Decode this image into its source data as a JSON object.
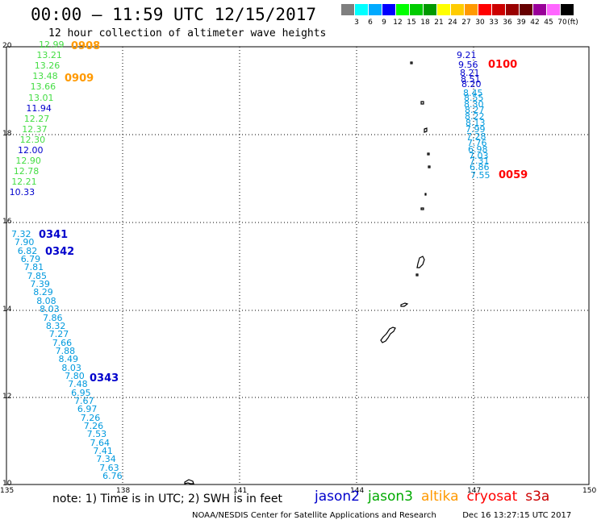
{
  "header": {
    "title": "00:00 – 11:59 UTC 12/15/2017",
    "subtitle": "12 hour collection of altimeter wave heights"
  },
  "legend": {
    "unit_label": "(ft)",
    "bins": [
      {
        "label": "3",
        "color": "#7f7f7f"
      },
      {
        "label": "6",
        "color": "#00ffff"
      },
      {
        "label": "9",
        "color": "#00aaff"
      },
      {
        "label": "12",
        "color": "#0000ff"
      },
      {
        "label": "15",
        "color": "#00ff00"
      },
      {
        "label": "18",
        "color": "#00cc00"
      },
      {
        "label": "21",
        "color": "#009900"
      },
      {
        "label": "24",
        "color": "#ffff00"
      },
      {
        "label": "27",
        "color": "#ffcc00"
      },
      {
        "label": "30",
        "color": "#ff9900"
      },
      {
        "label": "33",
        "color": "#ff0000"
      },
      {
        "label": "36",
        "color": "#cc0000"
      },
      {
        "label": "39",
        "color": "#990000"
      },
      {
        "label": "42",
        "color": "#660000"
      },
      {
        "label": "45",
        "color": "#990099"
      },
      {
        "label": "70",
        "color": "#ff66ff"
      },
      {
        "label": "",
        "color": "#000000"
      }
    ]
  },
  "axes": {
    "lon_ticks": [
      "135",
      "138",
      "141",
      "144",
      "147",
      "150"
    ],
    "lat_ticks": [
      "20",
      "18",
      "16",
      "14",
      "12",
      "10"
    ]
  },
  "observations": [
    {
      "value": "12.99",
      "color": "#44dd44"
    },
    {
      "value": "13.21",
      "color": "#44dd44"
    },
    {
      "value": "13.26",
      "color": "#44dd44"
    },
    {
      "value": "13.48",
      "color": "#44dd44"
    },
    {
      "value": "13.66",
      "color": "#44dd44"
    },
    {
      "value": "13.01",
      "color": "#44dd44"
    },
    {
      "value": "11.94",
      "color": "#0000cc"
    },
    {
      "value": "12.27",
      "color": "#44dd44"
    },
    {
      "value": "12.37",
      "color": "#44dd44"
    },
    {
      "value": "12.30",
      "color": "#44dd44"
    },
    {
      "value": "12.00",
      "color": "#0000cc"
    },
    {
      "value": "12.90",
      "color": "#44dd44"
    },
    {
      "value": "12.78",
      "color": "#44dd44"
    },
    {
      "value": "12.21",
      "color": "#44dd44"
    },
    {
      "value": "10.33",
      "color": "#0000cc"
    },
    {
      "value": "7.32",
      "color": "#0099dd"
    },
    {
      "value": "7.90",
      "color": "#0099dd"
    },
    {
      "value": "6.82",
      "color": "#0099dd"
    },
    {
      "value": "6.79",
      "color": "#0099dd"
    },
    {
      "value": "7.81",
      "color": "#0099dd"
    },
    {
      "value": "7.85",
      "color": "#0099dd"
    },
    {
      "value": "7.39",
      "color": "#0099dd"
    },
    {
      "value": "8.29",
      "color": "#0099dd"
    },
    {
      "value": "8.08",
      "color": "#0099dd"
    },
    {
      "value": "8.03",
      "color": "#0099dd"
    },
    {
      "value": "7.86",
      "color": "#0099dd"
    },
    {
      "value": "8.32",
      "color": "#0099dd"
    },
    {
      "value": "7.27",
      "color": "#0099dd"
    },
    {
      "value": "7.66",
      "color": "#0099dd"
    },
    {
      "value": "7.88",
      "color": "#0099dd"
    },
    {
      "value": "8.49",
      "color": "#0099dd"
    },
    {
      "value": "8.03",
      "color": "#0099dd"
    },
    {
      "value": "7.80",
      "color": "#0099dd"
    },
    {
      "value": "7.48",
      "color": "#0099dd"
    },
    {
      "value": "6.95",
      "color": "#0099dd"
    },
    {
      "value": "7.67",
      "color": "#0099dd"
    },
    {
      "value": "6.97",
      "color": "#0099dd"
    },
    {
      "value": "7.26",
      "color": "#0099dd"
    },
    {
      "value": "7.26",
      "color": "#0099dd"
    },
    {
      "value": "7.53",
      "color": "#0099dd"
    },
    {
      "value": "7.64",
      "color": "#0099dd"
    },
    {
      "value": "7.41",
      "color": "#0099dd"
    },
    {
      "value": "7.34",
      "color": "#0099dd"
    },
    {
      "value": "7.63",
      "color": "#0099dd"
    },
    {
      "value": "6.76",
      "color": "#0099dd"
    },
    {
      "value": "9.21",
      "color": "#0000cc"
    },
    {
      "value": "9.56",
      "color": "#0000cc"
    },
    {
      "value": "8.21",
      "color": "#0000cc"
    },
    {
      "value": "8.51",
      "color": "#0000cc"
    },
    {
      "value": "8.20",
      "color": "#0000cc"
    },
    {
      "value": "8.45",
      "color": "#0099dd"
    },
    {
      "value": "8.55",
      "color": "#0099dd"
    },
    {
      "value": "8.30",
      "color": "#0099dd"
    },
    {
      "value": "8.27",
      "color": "#0099dd"
    },
    {
      "value": "8.22",
      "color": "#0099dd"
    },
    {
      "value": "8.13",
      "color": "#0099dd"
    },
    {
      "value": "7.99",
      "color": "#0099dd"
    },
    {
      "value": "7.28",
      "color": "#0099dd"
    },
    {
      "value": "7.76",
      "color": "#0099dd"
    },
    {
      "value": "6.98",
      "color": "#0099dd"
    },
    {
      "value": "7.03",
      "color": "#0099dd"
    },
    {
      "value": "7.31",
      "color": "#0099dd"
    },
    {
      "value": "6.86",
      "color": "#0099dd"
    },
    {
      "value": "7.55",
      "color": "#0099dd"
    }
  ],
  "time_labels": [
    {
      "text": "0908",
      "color": "#ff9900"
    },
    {
      "text": "0909",
      "color": "#ff9900"
    },
    {
      "text": "0341",
      "color": "#0000cc"
    },
    {
      "text": "0342",
      "color": "#0000cc"
    },
    {
      "text": "0343",
      "color": "#0000cc"
    },
    {
      "text": "0100",
      "color": "#ff0000"
    },
    {
      "text": "0059",
      "color": "#ff0000"
    }
  ],
  "footer": {
    "note": "note:  1) Time is in UTC;  2) SWH is in feet",
    "satellites": [
      {
        "name": "jason2",
        "color": "#0000cc"
      },
      {
        "name": "jason3",
        "color": "#00aa00"
      },
      {
        "name": "altika",
        "color": "#ff9900"
      },
      {
        "name": "cryosat",
        "color": "#ff0000"
      },
      {
        "name": "s3a",
        "color": "#cc0000"
      }
    ],
    "credit_left": "NOAA/NESDIS Center for Satellite Applications and Research",
    "credit_right": "Dec 16 13:27:15 UTC 2017"
  }
}
